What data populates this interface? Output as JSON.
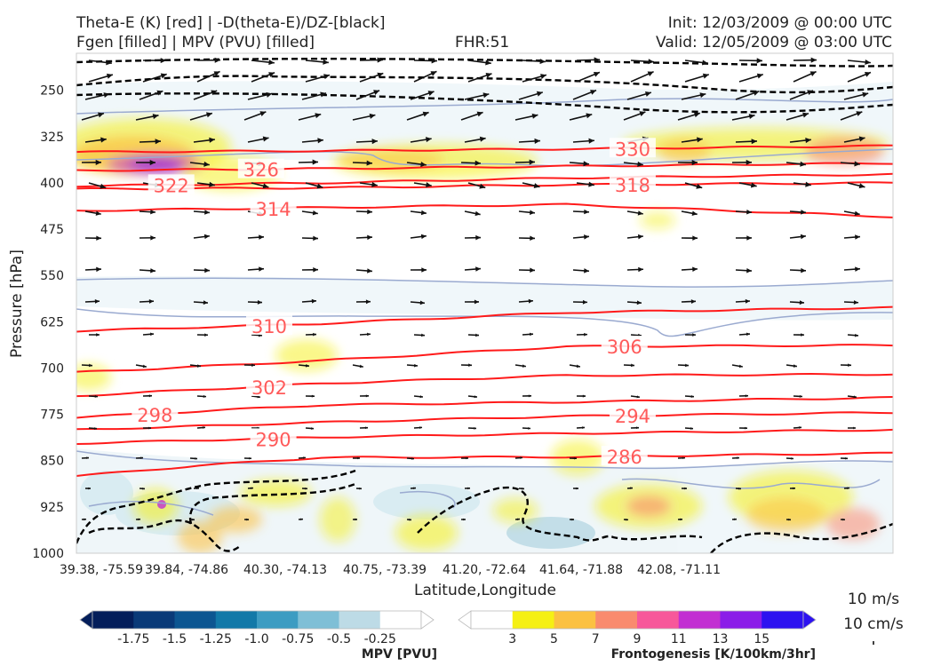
{
  "header": {
    "left1": "Theta-E (K) [red] | -D(theta-E)/DZ-[black]",
    "left2": "Fgen [filled] | MPV (PVU) [filled]",
    "fhr": "FHR:51",
    "init": "Init: 12/03/2009 @ 00:00 UTC",
    "valid": "Valid: 12/05/2009 @ 03:00 UTC"
  },
  "colors": {
    "theta_e": "#ff1a1a",
    "theta_e_label": "#ff5a5a",
    "ddz": "#000000",
    "mpv_outline": "#9aaad0"
  },
  "chart_data": {
    "type": "cross-section",
    "xlabel": "Latitude,Longitude",
    "ylabel": "Pressure [hPa]",
    "x_ticks": [
      "39.38, -75.59",
      "39.84, -74.86",
      "40.30, -74.13",
      "40.75, -73.39",
      "41.20, -72.64",
      "41.64, -71.88",
      "42.08, -71.11"
    ],
    "y_ticks": [
      250,
      325,
      400,
      475,
      550,
      625,
      700,
      775,
      850,
      925,
      1000
    ],
    "ylim": [
      1000,
      190
    ],
    "theta_e_contours": [
      {
        "value": 330,
        "label": "330",
        "points": [
          [
            0,
            350
          ],
          [
            0.3,
            348
          ],
          [
            0.6,
            345
          ],
          [
            1.0,
            340
          ]
        ]
      },
      {
        "value": 326,
        "label": "326",
        "points": [
          [
            0,
            380
          ],
          [
            0.3,
            377
          ],
          [
            0.6,
            373
          ],
          [
            1.0,
            368
          ]
        ]
      },
      {
        "value": 322,
        "label": "322",
        "points": [
          [
            0,
            405
          ],
          [
            0.3,
            400
          ],
          [
            0.6,
            392
          ],
          [
            1.0,
            386
          ]
        ]
      },
      {
        "value": 318,
        "label": "318",
        "points": [
          [
            0,
            410
          ],
          [
            0.3,
            408
          ],
          [
            0.6,
            403
          ],
          [
            1.0,
            400
          ]
        ]
      },
      {
        "value": 314,
        "label": "314",
        "points": [
          [
            0,
            445
          ],
          [
            0.3,
            440
          ],
          [
            0.6,
            435
          ],
          [
            1.0,
            455
          ]
        ]
      },
      {
        "value": 310,
        "label": "310",
        "points": [
          [
            0,
            640
          ],
          [
            0.3,
            628
          ],
          [
            0.6,
            610
          ],
          [
            1.0,
            602
          ]
        ]
      },
      {
        "value": 306,
        "label": "306",
        "points": [
          [
            0,
            707
          ],
          [
            0.3,
            688
          ],
          [
            0.6,
            665
          ],
          [
            1.0,
            663
          ]
        ]
      },
      {
        "value": 302,
        "label": "302",
        "points": [
          [
            0,
            745
          ],
          [
            0.3,
            725
          ],
          [
            0.6,
            712
          ],
          [
            1.0,
            710
          ]
        ]
      },
      {
        "value": 298,
        "label": "298",
        "points": [
          [
            0,
            780
          ],
          [
            0.3,
            760
          ],
          [
            0.6,
            755
          ],
          [
            1.0,
            748
          ]
        ]
      },
      {
        "value": 294,
        "label": "294",
        "points": [
          [
            0,
            800
          ],
          [
            0.3,
            788
          ],
          [
            0.6,
            778
          ],
          [
            1.0,
            772
          ]
        ]
      },
      {
        "value": 290,
        "label": "290",
        "points": [
          [
            0,
            822
          ],
          [
            0.3,
            812
          ],
          [
            0.6,
            806
          ],
          [
            1.0,
            800
          ]
        ]
      },
      {
        "value": 286,
        "label": "286",
        "points": [
          [
            0,
            875
          ],
          [
            0.15,
            858
          ],
          [
            0.3,
            845
          ],
          [
            0.6,
            844
          ],
          [
            1.0,
            838
          ]
        ]
      }
    ],
    "mpv_colorbar": {
      "title": "MPV [PVU]",
      "ticks": [
        "-1.75",
        "-1.5",
        "-1.25",
        "-1.0",
        "-0.75",
        "-0.5",
        "-0.25"
      ],
      "colors": [
        "#041e5a",
        "#0a3a78",
        "#0d5691",
        "#1279a8",
        "#3d9cc2",
        "#7fbfd6",
        "#bddbe6",
        "#ffffff"
      ]
    },
    "fgen_colorbar": {
      "title": "Frontogenesis [K/100km/3hr]",
      "ticks": [
        "3",
        "5",
        "7",
        "9",
        "11",
        "13",
        "15"
      ],
      "colors": [
        "#ffffff",
        "#f5f014",
        "#fbc142",
        "#f98b6e",
        "#f7589a",
        "#c22fd2",
        "#8b1de8",
        "#2d12f0"
      ]
    },
    "wind_key": {
      "label1": "10 m/s",
      "label2": "10 cm/s"
    }
  }
}
